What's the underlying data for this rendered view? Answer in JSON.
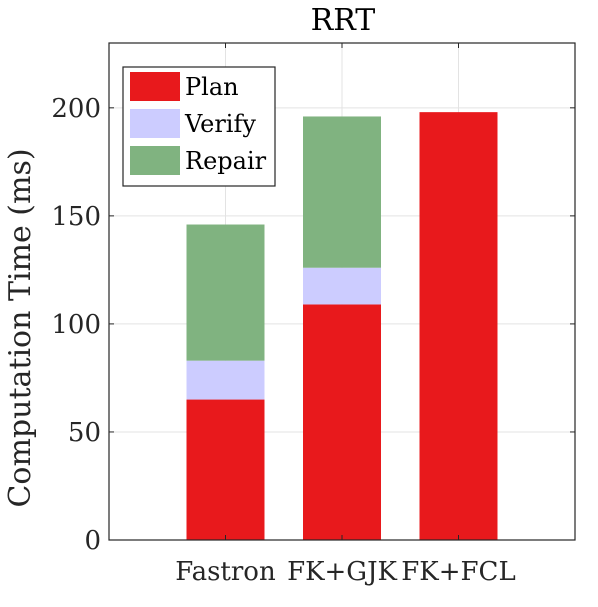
{
  "chart_data": {
    "type": "bar",
    "stacked": true,
    "title": "RRT",
    "xlabel": "",
    "ylabel": "Computation Time (ms)",
    "ylim": [
      0,
      230
    ],
    "yticks": [
      0,
      50,
      100,
      150,
      200
    ],
    "grid": true,
    "legend_position": "top-left",
    "categories": [
      "Fastron",
      "FK+GJK",
      "FK+FCL"
    ],
    "series": [
      {
        "name": "Plan",
        "color": "#e8191c",
        "values": [
          65,
          109,
          198
        ]
      },
      {
        "name": "Verify",
        "color": "#ccccff",
        "values": [
          18,
          17,
          0
        ]
      },
      {
        "name": "Repair",
        "color": "#80b380",
        "values": [
          63,
          70,
          0
        ]
      }
    ]
  }
}
